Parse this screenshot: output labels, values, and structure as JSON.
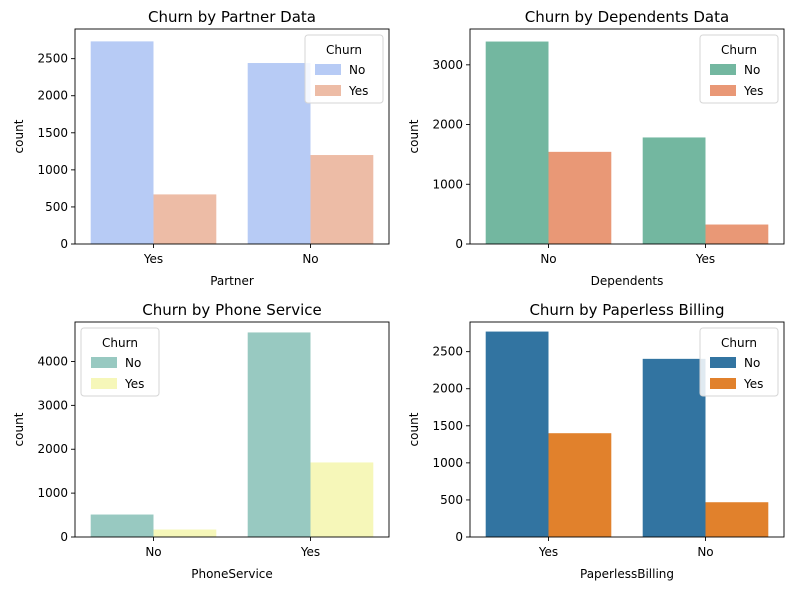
{
  "chart_data": [
    {
      "type": "bar",
      "title": "Churn by Partner Data",
      "xlabel": "Partner",
      "ylabel": "count",
      "categories": [
        "Yes",
        "No"
      ],
      "ylim": [
        0,
        2900
      ],
      "yticks": [
        0,
        500,
        1000,
        1500,
        2000,
        2500
      ],
      "legend": {
        "title": "Churn",
        "position": "top-right"
      },
      "series": [
        {
          "name": "No",
          "color": "#b7cbf5",
          "values": [
            2733,
            2441
          ]
        },
        {
          "name": "Yes",
          "color": "#edbca6",
          "values": [
            669,
            1200
          ]
        }
      ]
    },
    {
      "type": "bar",
      "title": "Churn by Dependents Data",
      "xlabel": "Dependents",
      "ylabel": "count",
      "categories": [
        "No",
        "Yes"
      ],
      "ylim": [
        0,
        3600
      ],
      "yticks": [
        0,
        1000,
        2000,
        3000
      ],
      "legend": {
        "title": "Churn",
        "position": "top-right"
      },
      "series": [
        {
          "name": "No",
          "color": "#73b7a0",
          "values": [
            3390,
            1784
          ]
        },
        {
          "name": "Yes",
          "color": "#e99876",
          "values": [
            1543,
            326
          ]
        }
      ]
    },
    {
      "type": "bar",
      "title": "Churn by Phone Service",
      "xlabel": "PhoneService",
      "ylabel": "count",
      "categories": [
        "No",
        "Yes"
      ],
      "ylim": [
        0,
        4900
      ],
      "yticks": [
        0,
        1000,
        2000,
        3000,
        4000
      ],
      "legend": {
        "title": "Churn",
        "position": "top-left"
      },
      "series": [
        {
          "name": "No",
          "color": "#98c9c1",
          "values": [
            512,
            4662
          ]
        },
        {
          "name": "Yes",
          "color": "#f6f7b9",
          "values": [
            170,
            1699
          ]
        }
      ]
    },
    {
      "type": "bar",
      "title": "Churn by Paperless Billing",
      "xlabel": "PaperlessBilling",
      "ylabel": "count",
      "categories": [
        "Yes",
        "No"
      ],
      "ylim": [
        0,
        2900
      ],
      "yticks": [
        0,
        500,
        1000,
        1500,
        2000,
        2500
      ],
      "legend": {
        "title": "Churn",
        "position": "top-right"
      },
      "series": [
        {
          "name": "No",
          "color": "#3274a1",
          "values": [
            2771,
            2403
          ]
        },
        {
          "name": "Yes",
          "color": "#e1812c",
          "values": [
            1400,
            469
          ]
        }
      ]
    }
  ]
}
